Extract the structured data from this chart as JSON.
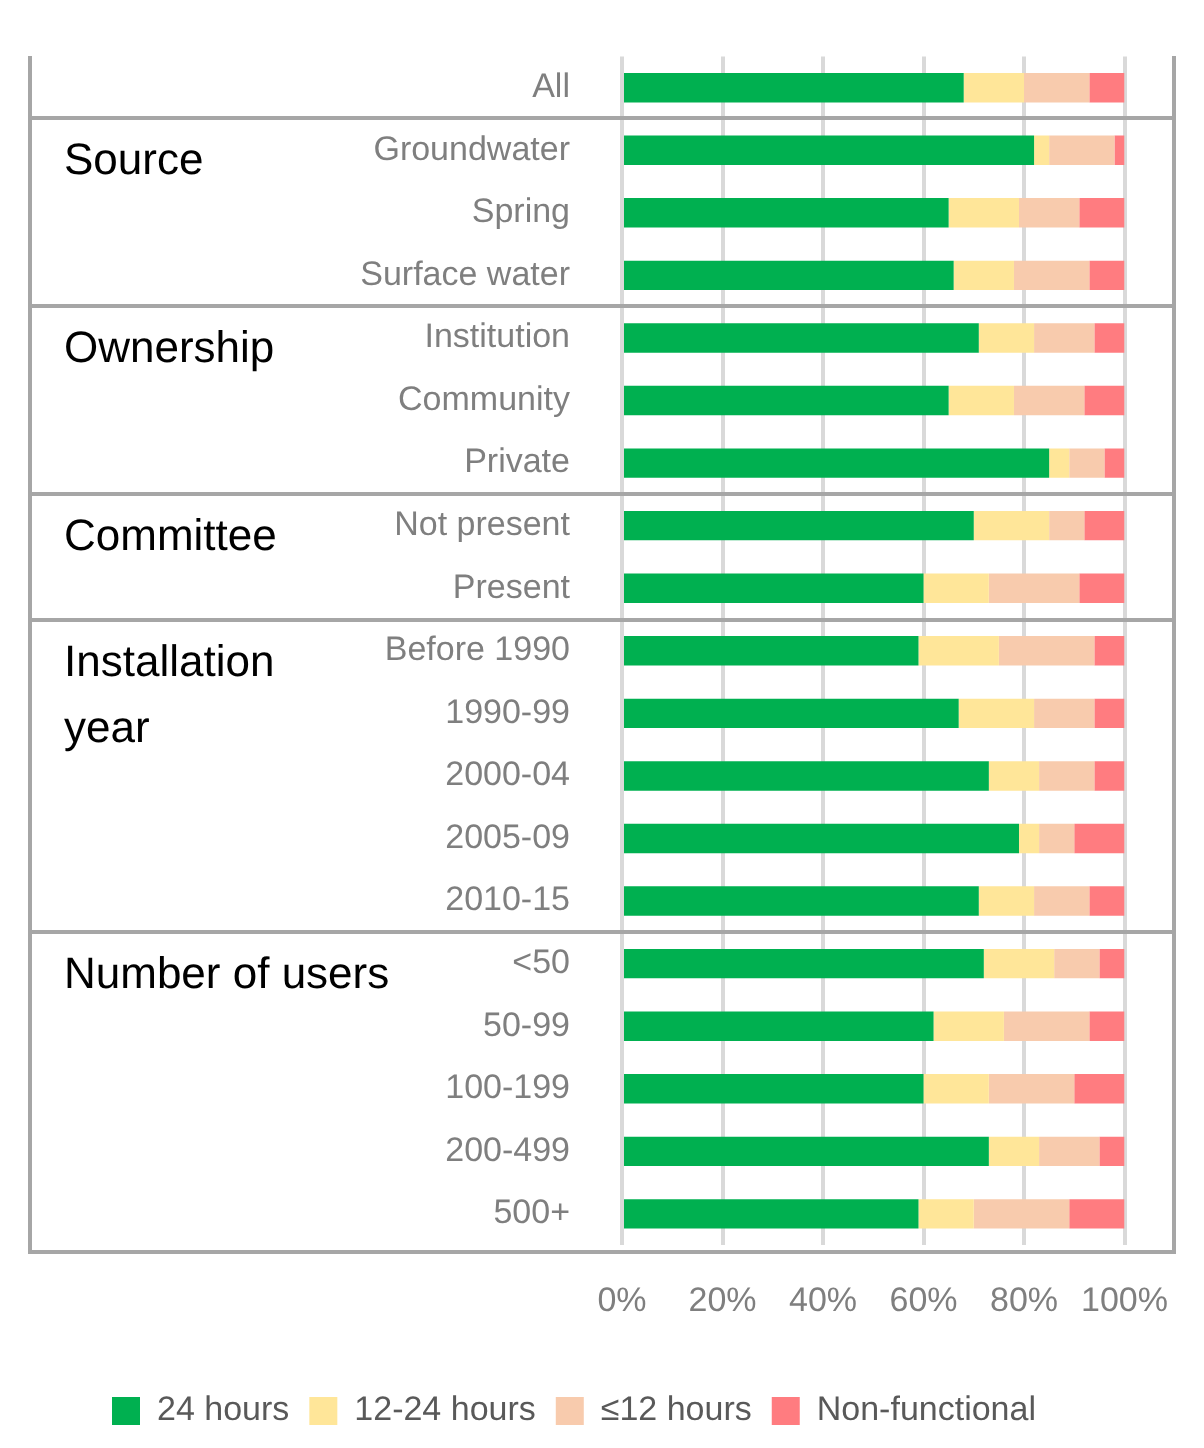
{
  "chart_data": {
    "type": "bar",
    "orientation": "horizontal",
    "stacked": true,
    "categories": [
      "All",
      "Groundwater",
      "Spring",
      "Surface water",
      "Institution",
      "Community",
      "Private",
      "Not present",
      "Present",
      "Before 1990",
      "1990-99",
      "2000-04",
      "2005-09",
      "2010-15",
      "<50",
      "50-99",
      "100-199",
      "200-499",
      "500+"
    ],
    "series": [
      {
        "name": "24 hours",
        "color": "#00b050",
        "values": [
          68,
          82,
          65,
          66,
          71,
          65,
          85,
          70,
          60,
          59,
          67,
          73,
          79,
          71,
          72,
          62,
          60,
          73,
          59
        ]
      },
      {
        "name": "12-24 hours",
        "color": "#ffe699",
        "values": [
          12,
          3,
          14,
          12,
          11,
          13,
          4,
          15,
          13,
          16,
          15,
          10,
          4,
          11,
          14,
          14,
          13,
          10,
          11
        ]
      },
      {
        "name": "≤12 hours",
        "color": "#f8cbad",
        "values": [
          13,
          13,
          12,
          15,
          12,
          14,
          7,
          7,
          18,
          19,
          12,
          11,
          7,
          11,
          9,
          17,
          17,
          12,
          19
        ]
      },
      {
        "name": "Non-functional",
        "color": "#ff7c80",
        "values": [
          7,
          2,
          9,
          7,
          6,
          8,
          4,
          8,
          9,
          6,
          6,
          6,
          10,
          7,
          5,
          7,
          10,
          5,
          11
        ]
      }
    ],
    "xlim": [
      0,
      100
    ],
    "xticks": [
      {
        "value": 0,
        "label": "0%"
      },
      {
        "value": 20,
        "label": "20%"
      },
      {
        "value": 40,
        "label": "40%"
      },
      {
        "value": 60,
        "label": "60%"
      },
      {
        "value": 80,
        "label": "80%"
      },
      {
        "value": 100,
        "label": "100%"
      }
    ],
    "grid": "x",
    "legend": "bottom",
    "annotations": [
      "Source",
      "Ownership",
      "Committee",
      "Installation year",
      "Number of users"
    ]
  }
}
